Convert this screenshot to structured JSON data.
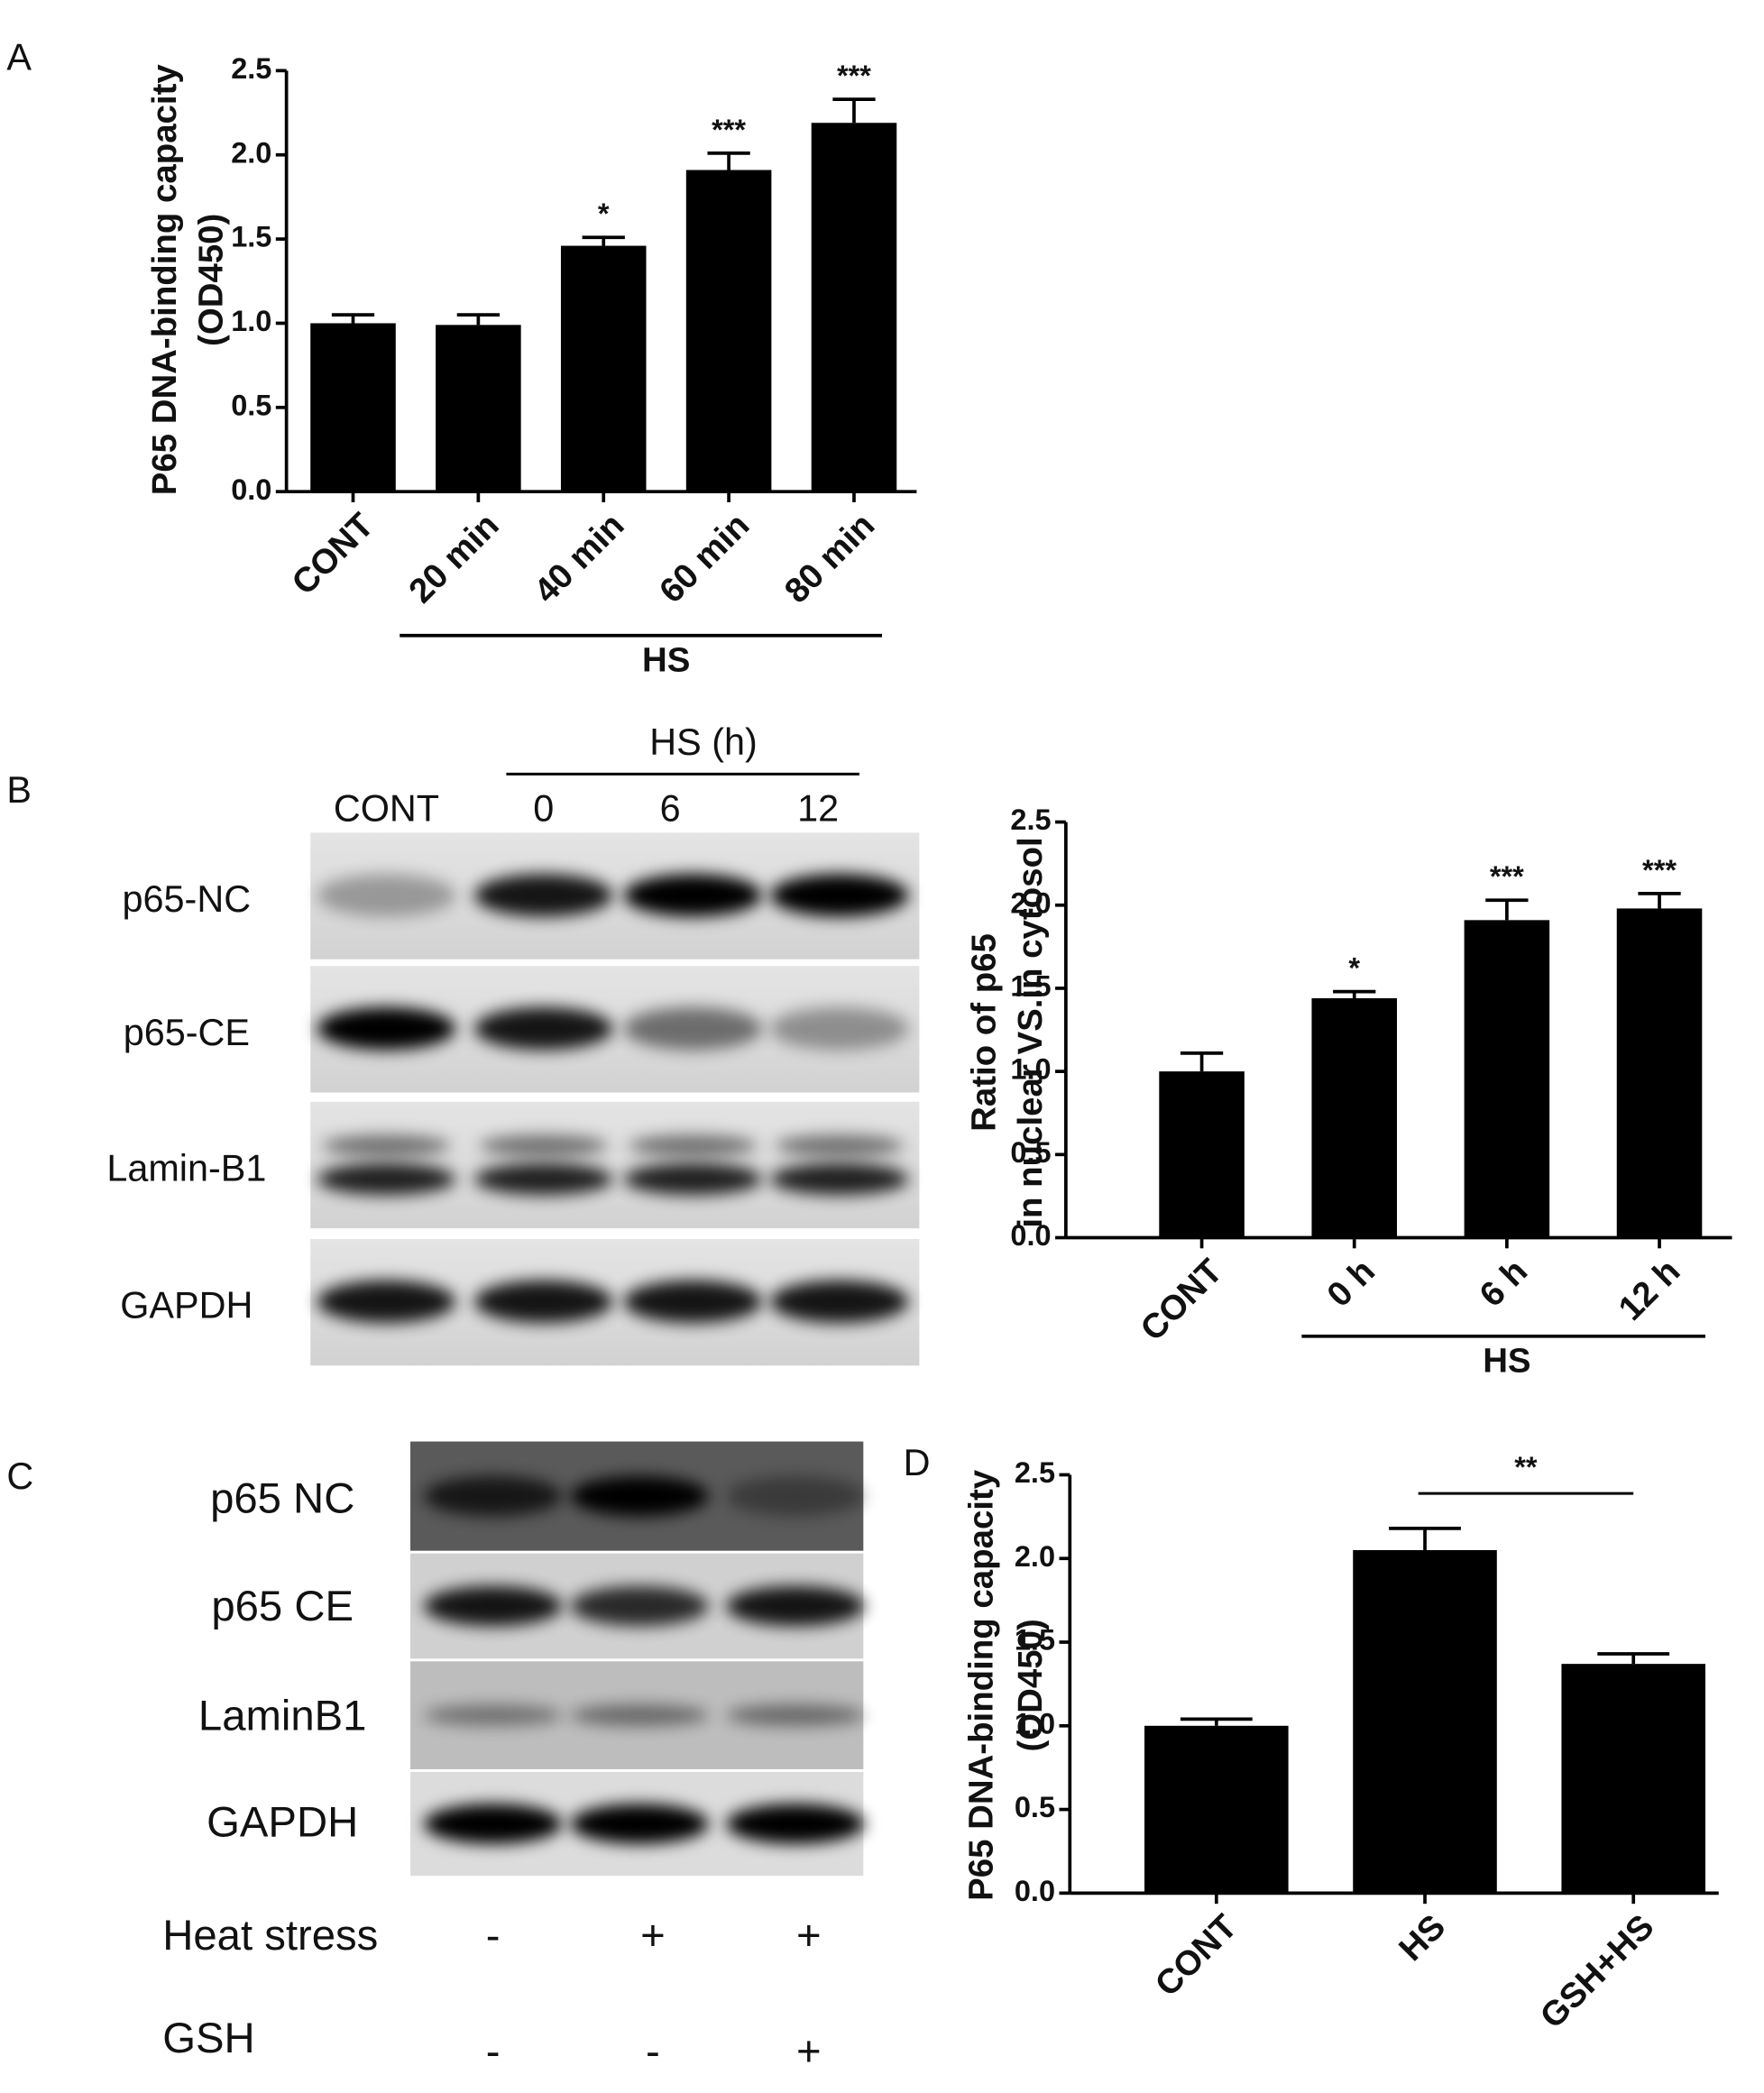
{
  "panel_labels": [
    "A",
    "B",
    "C",
    "D"
  ],
  "chart_data": [
    {
      "type": "bar",
      "ylabel": [
        "P65 DNA-binding capacity",
        "(OD450)"
      ],
      "categories": [
        "CONT",
        "20 min",
        "40 min",
        "60 min",
        "80 min"
      ],
      "values": [
        1.0,
        0.99,
        1.46,
        1.91,
        2.19
      ],
      "errors": [
        0.05,
        0.06,
        0.05,
        0.1,
        0.14
      ],
      "annotations": [
        null,
        null,
        "*",
        "***",
        "***"
      ],
      "group": {
        "label": "HS",
        "from": 1,
        "to": 4
      },
      "color": "#000000",
      "ylim": [
        0,
        2.5
      ],
      "yticks": [
        {
          "value": 0,
          "label": "0.0"
        },
        0.5,
        {
          "value": 1,
          "label": "1.0"
        },
        1.5,
        {
          "value": 2,
          "label": "2.0"
        },
        2.5
      ]
    },
    {
      "type": "bar",
      "ylabel": [
        "Ratio of p65",
        "in nuclear VS.in cytosol"
      ],
      "categories": [
        "CONT",
        "0 h",
        "6 h",
        "12 h"
      ],
      "values": [
        1.0,
        1.44,
        1.91,
        1.98
      ],
      "errors": [
        0.11,
        0.04,
        0.12,
        0.09
      ],
      "annotations": [
        null,
        "*",
        "***",
        "***"
      ],
      "group": {
        "label": "HS",
        "from": 1,
        "to": 3
      },
      "color": "#000000",
      "ylim": [
        0,
        2.5
      ],
      "yticks": [
        {
          "value": 0,
          "label": "0.0"
        },
        0.5,
        {
          "value": 1,
          "label": "1.0"
        },
        1.5,
        {
          "value": 2,
          "label": "2.0"
        },
        2.5
      ]
    },
    {
      "type": "bar",
      "ylabel": [
        "P65 DNA-binding capacity",
        "(OD450)"
      ],
      "categories": [
        "CONT",
        "HS",
        "GSH+HS"
      ],
      "values": [
        1.0,
        2.05,
        1.37
      ],
      "errors": [
        0.04,
        0.13,
        0.06
      ],
      "bracket": {
        "label": "**",
        "from": 1,
        "to": 2
      },
      "color": "#000000",
      "ylim": [
        0,
        2.5
      ],
      "yticks": [
        {
          "value": 0,
          "label": "0.0"
        },
        0.5,
        {
          "value": 1,
          "label": "1.0"
        },
        1.5,
        {
          "value": 2,
          "label": "2.0"
        },
        2.5
      ]
    }
  ],
  "blots": [
    {
      "header": "HS (h)",
      "lanes": [
        "CONT",
        "0",
        "6",
        "12"
      ],
      "rows": [
        "p65-NC",
        "p65-CE",
        "Lamin-B1",
        "GAPDH"
      ]
    },
    {
      "rows": [
        "p65 NC",
        "p65 CE",
        "LaminB1",
        "GAPDH"
      ],
      "conditions": [
        {
          "name": "Heat stress",
          "signs": [
            "-",
            "+",
            "+"
          ]
        },
        {
          "name": "GSH",
          "signs": [
            "-",
            "-",
            "+"
          ]
        }
      ]
    }
  ]
}
